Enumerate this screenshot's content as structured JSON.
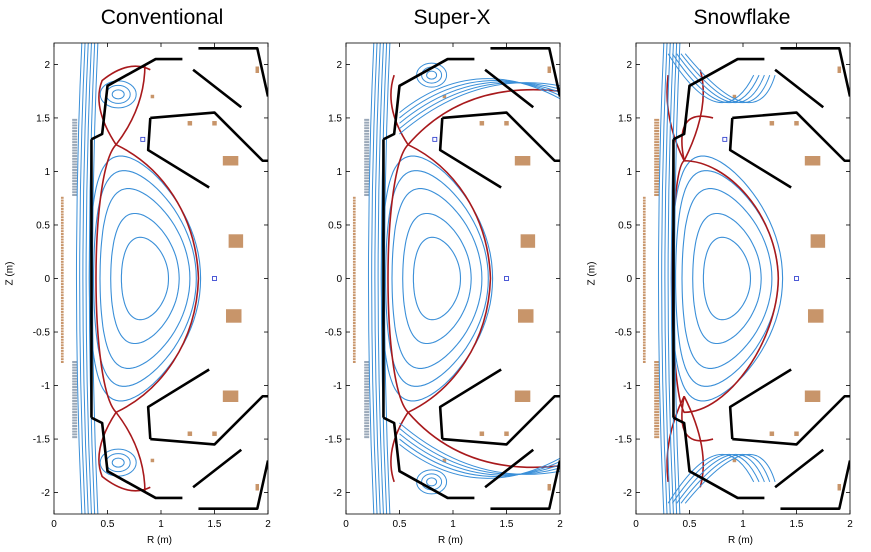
{
  "panels": [
    {
      "title": "Conventional",
      "xlabel": "R (m)",
      "ylabel": "Z (m)",
      "type": "conventional"
    },
    {
      "title": "Super-X",
      "xlabel": "R (m)",
      "ylabel": "",
      "type": "superx"
    },
    {
      "title": "Snowflake",
      "xlabel": "R (m)",
      "ylabel": "Z (m)",
      "type": "snowflake"
    }
  ],
  "axes": {
    "xticks": [
      "0",
      "0.5",
      "1",
      "1.5",
      "2"
    ],
    "yticks": [
      "2",
      "1.5",
      "1",
      "0.5",
      "0",
      "-0.5",
      "-1",
      "-1.5",
      "-2"
    ]
  },
  "colors": {
    "flux": "#3a8fd8",
    "separatrix": "#a8191c",
    "wall": "#000000",
    "coil": "#c8956a",
    "probe": "#2233cc"
  }
}
